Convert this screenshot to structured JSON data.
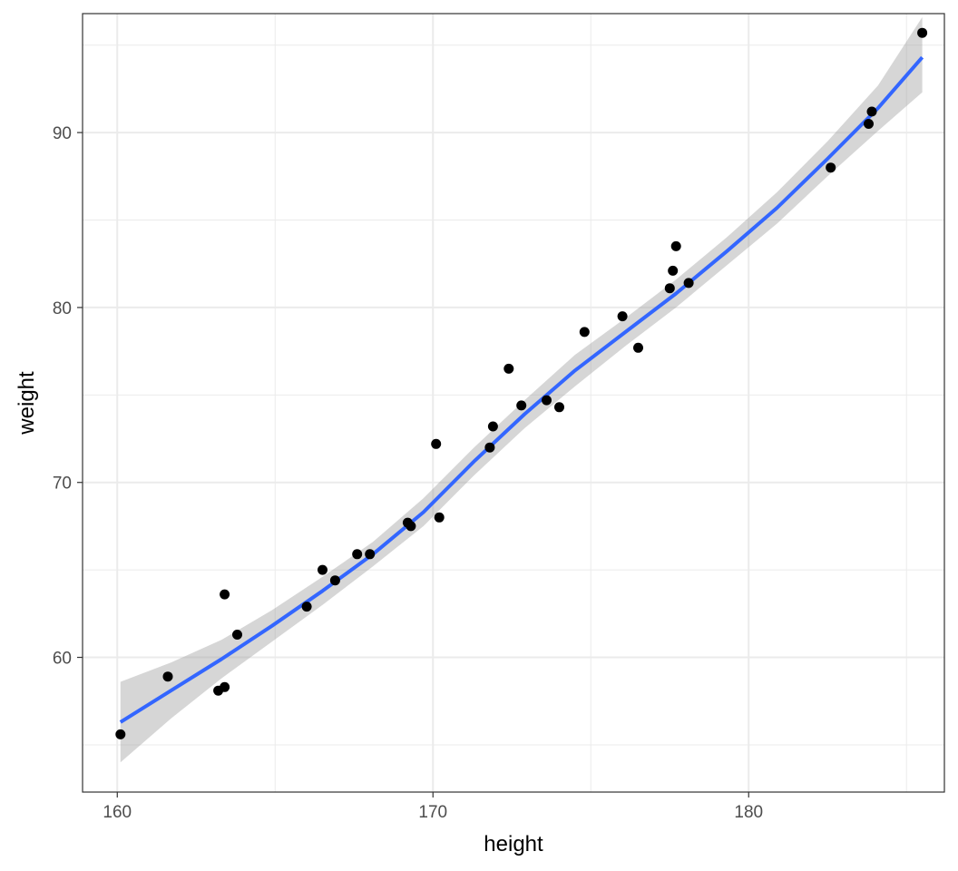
{
  "chart_data": {
    "type": "scatter",
    "title": "",
    "xlabel": "height",
    "ylabel": "weight",
    "xlim": [
      158.9,
      186.2
    ],
    "ylim": [
      52.3,
      96.8
    ],
    "x_ticks": [
      160,
      170,
      180
    ],
    "y_ticks": [
      60,
      70,
      80,
      90
    ],
    "grid": true,
    "legend": "none",
    "series": [
      {
        "type": "points",
        "color": "#000000",
        "x": [
          160.1,
          161.6,
          163.2,
          163.4,
          163.4,
          163.8,
          166.0,
          166.5,
          166.9,
          167.6,
          168.0,
          169.2,
          169.3,
          170.1,
          170.2,
          171.8,
          171.9,
          172.4,
          172.8,
          173.6,
          174.0,
          174.8,
          176.0,
          176.5,
          177.5,
          177.6,
          177.7,
          178.1,
          182.6,
          183.8,
          183.9,
          185.5
        ],
        "y": [
          55.6,
          58.9,
          58.1,
          58.3,
          63.6,
          61.3,
          62.9,
          65.0,
          64.4,
          65.9,
          65.9,
          67.7,
          67.5,
          72.2,
          68.0,
          72.0,
          73.2,
          76.5,
          74.4,
          74.7,
          74.3,
          78.6,
          79.5,
          77.7,
          81.1,
          82.1,
          83.5,
          81.4,
          88.0,
          90.5,
          91.2,
          95.7
        ]
      },
      {
        "type": "smooth",
        "color": "#3366FF",
        "band_color": "#999999",
        "x": [
          160.1,
          161.7,
          163.3,
          164.9,
          166.5,
          168.1,
          169.7,
          171.3,
          172.9,
          174.5,
          176.1,
          177.7,
          179.3,
          180.9,
          182.5,
          184.1,
          185.5
        ],
        "y": [
          56.3,
          58.1,
          59.9,
          61.8,
          63.8,
          65.9,
          68.3,
          71.2,
          73.9,
          76.4,
          78.6,
          80.8,
          83.2,
          85.7,
          88.5,
          91.4,
          94.3
        ],
        "ymin": [
          54.0,
          56.5,
          58.8,
          60.9,
          63.0,
          65.2,
          67.5,
          70.4,
          73.1,
          75.5,
          77.8,
          80.0,
          82.4,
          84.8,
          87.5,
          90.1,
          92.3
        ],
        "ymax": [
          58.6,
          59.7,
          61.0,
          62.7,
          64.6,
          66.6,
          69.1,
          72.0,
          74.7,
          77.3,
          79.4,
          81.6,
          84.0,
          86.6,
          89.5,
          92.7,
          96.6
        ]
      }
    ]
  }
}
